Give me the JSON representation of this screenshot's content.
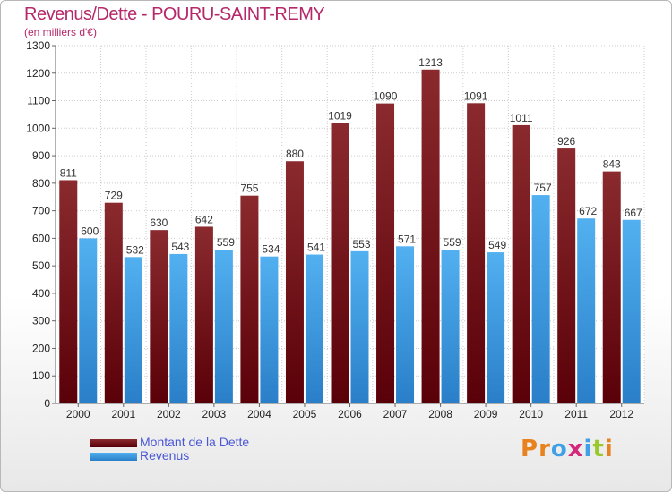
{
  "header": {
    "title": "Revenus/Dette - POURU-SAINT-REMY",
    "subtitle": "(en milliers d'€)"
  },
  "legend": {
    "items": [
      {
        "label": "Montant de la Dette",
        "color": "#6b0f14"
      },
      {
        "label": "Revenus",
        "color": "#3f9ee6"
      }
    ]
  },
  "logo": {
    "text": "Proxiti",
    "colors": [
      "#e8821e",
      "#e8821e",
      "#3fa0e6",
      "#d6287a",
      "#3fa0e6",
      "#9bc92c",
      "#e8821e"
    ]
  },
  "chart_data": {
    "type": "bar",
    "title": "Revenus/Dette - POURU-SAINT-REMY",
    "subtitle": "(en milliers d'€)",
    "categories": [
      "2000",
      "2001",
      "2002",
      "2003",
      "2004",
      "2005",
      "2006",
      "2007",
      "2008",
      "2009",
      "2010",
      "2011",
      "2012"
    ],
    "series": [
      {
        "name": "Montant de la Dette",
        "color": "#6b0f14",
        "values": [
          811,
          729,
          630,
          642,
          755,
          880,
          1019,
          1090,
          1213,
          1091,
          1011,
          926,
          843
        ]
      },
      {
        "name": "Revenus",
        "color": "#3f9ee6",
        "values": [
          600,
          532,
          543,
          559,
          534,
          541,
          553,
          571,
          559,
          549,
          757,
          672,
          667
        ]
      }
    ],
    "ylim": [
      0,
      1300
    ],
    "yticks": [
      0,
      100,
      200,
      300,
      400,
      500,
      600,
      700,
      800,
      900,
      1000,
      1100,
      1200,
      1300
    ],
    "grid": true,
    "legend_position": "bottom-left"
  }
}
